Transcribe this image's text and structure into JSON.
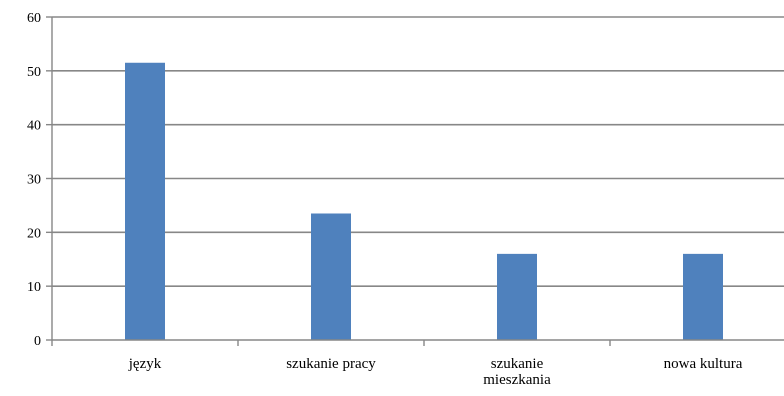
{
  "chart_data": {
    "type": "bar",
    "categories": [
      "język",
      "szukanie pracy",
      "szukanie mieszkania",
      "nowa kultura"
    ],
    "category_label_lines": [
      [
        "język"
      ],
      [
        "szukanie pracy"
      ],
      [
        "szukanie",
        "mieszkania"
      ],
      [
        "nowa kultura"
      ]
    ],
    "values": [
      51.5,
      23.5,
      16,
      16
    ],
    "ylim": [
      0,
      60
    ],
    "yticks": [
      "0",
      "10",
      "20",
      "30",
      "40",
      "50",
      "60"
    ],
    "title": "",
    "xlabel": "",
    "ylabel": "",
    "grid": true,
    "legend": "none",
    "colors": {
      "bar": "#4F81BD",
      "grid": "#878787",
      "axis": "#878787"
    }
  }
}
